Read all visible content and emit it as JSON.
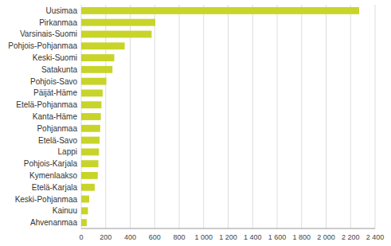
{
  "chart_data": {
    "type": "bar",
    "orientation": "horizontal",
    "categories": [
      "Ahvenanmaa",
      "Kainuu",
      "Keski-Pohjanmaa",
      "Etelä-Karjala",
      "Kymenlaakso",
      "Pohjois-Karjala",
      "Lappi",
      "Etelä-Savo",
      "Pohjanmaa",
      "Kanta-Häme",
      "Etelä-Pohjanmaa",
      "Päijät-Häme",
      "Pohjois-Savo",
      "Satakunta",
      "Keski-Suomi",
      "Pohjois-Pohjanmaa",
      "Varsinais-Suomi",
      "Pirkanmaa",
      "Uusimaa"
    ],
    "values": [
      45,
      55,
      65,
      110,
      135,
      140,
      145,
      150,
      155,
      160,
      165,
      175,
      205,
      255,
      270,
      355,
      575,
      605,
      2270
    ],
    "color": "#c8d42a",
    "xlim": [
      0,
      2400
    ],
    "xticks": [
      0,
      200,
      400,
      600,
      800,
      {
        "value": 1000,
        "label": "1 000"
      },
      {
        "value": 1200,
        "label": "1 200"
      },
      {
        "value": 1400,
        "label": "1 400"
      },
      {
        "value": 1600,
        "label": "1 600"
      },
      {
        "value": 1800,
        "label": "1 800"
      },
      {
        "value": 2000,
        "label": "2 000"
      },
      {
        "value": 2200,
        "label": "2 200"
      },
      {
        "value": 2400,
        "label": "2 400"
      }
    ],
    "grid": true
  }
}
